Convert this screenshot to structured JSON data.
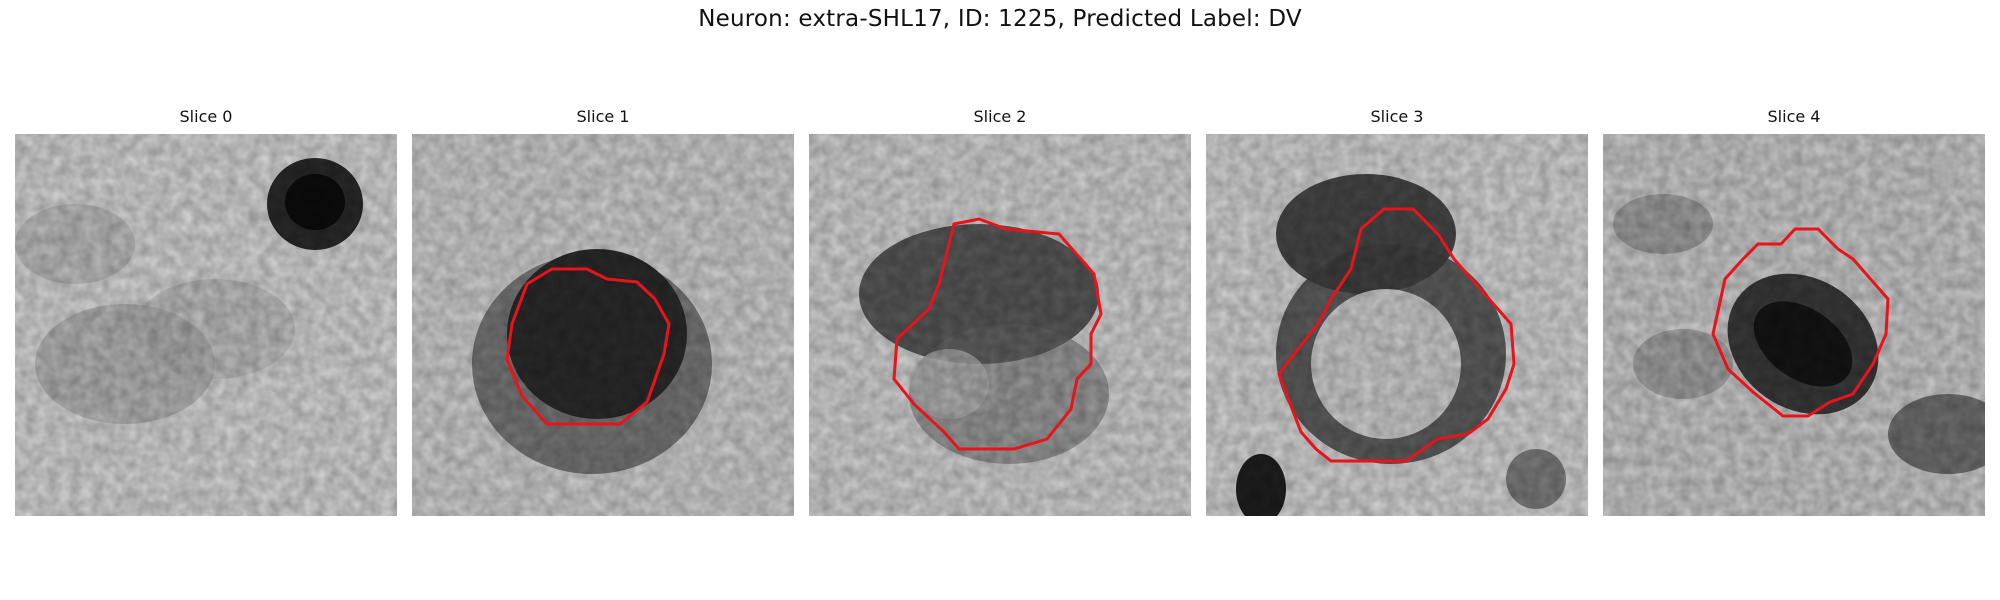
{
  "suptitle": "Neuron: extra-SHL17, ID: 1225, Predicted Label: DV",
  "contour_color": "#e8131b",
  "panels": [
    {
      "title": "Slice 0"
    },
    {
      "title": "Slice 1"
    },
    {
      "title": "Slice 2"
    },
    {
      "title": "Slice 3"
    },
    {
      "title": "Slice 4"
    }
  ]
}
